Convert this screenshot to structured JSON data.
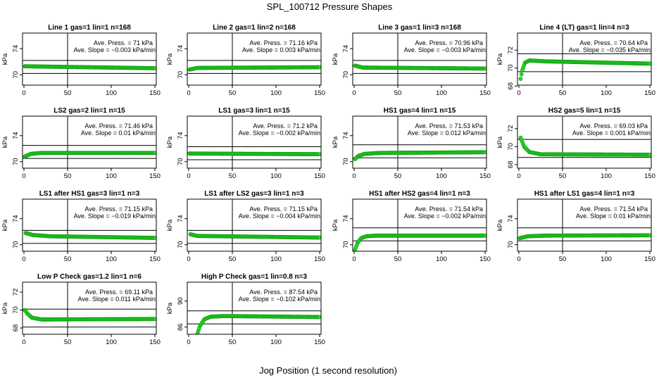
{
  "figure": {
    "title": "SPL_100712  Pressure Shapes",
    "xlabel": "Jog Position (1 second resolution)"
  },
  "colors": {
    "points_fill": "#22dd22",
    "points_edge": "#119911",
    "axes": "#000000"
  },
  "chart_data": [
    {
      "type": "scatter",
      "title": "Line 1 gas=1 lin=1 n=168",
      "ylabel": "kPa",
      "xlim": [
        0,
        150
      ],
      "ylim": [
        68.4,
        76.4
      ],
      "xticks": [
        0,
        50,
        100,
        150
      ],
      "yticks": [
        70,
        74
      ],
      "hline": [
        70.2,
        72.2
      ],
      "vline": 50,
      "ave_press": "Ave. Press. =  71  kPa",
      "ave_slope": "Ave. Slope = −0.003  kPa/min",
      "series": [
        {
          "x": [
            1,
            150
          ],
          "y": [
            71.3,
            71.0
          ]
        }
      ]
    },
    {
      "type": "scatter",
      "title": "Line 2 gas=1 lin=2 n=168",
      "ylabel": "kPa",
      "xlim": [
        0,
        150
      ],
      "ylim": [
        68.4,
        76.4
      ],
      "xticks": [
        0,
        50,
        100,
        150
      ],
      "yticks": [
        70,
        74
      ],
      "hline": [
        70.2,
        72.2
      ],
      "vline": 50,
      "ave_press": "Ave. Press. =  71.16  kPa",
      "ave_slope": "Ave. Slope =  0.003  kPa/min",
      "series": [
        {
          "x": [
            1,
            10,
            150
          ],
          "y": [
            70.8,
            71.05,
            71.15
          ]
        }
      ]
    },
    {
      "type": "scatter",
      "title": "Line 3 gas=1 lin=3 n=168",
      "ylabel": "kPa",
      "xlim": [
        0,
        150
      ],
      "ylim": [
        68.4,
        76.4
      ],
      "xticks": [
        0,
        50,
        100,
        150
      ],
      "yticks": [
        70,
        74
      ],
      "hline": [
        70.2,
        72.2
      ],
      "vline": 50,
      "ave_press": "Ave. Press. =  70.96  kPa",
      "ave_slope": "Ave. Slope = −0.003  kPa/min",
      "series": [
        {
          "x": [
            1,
            10,
            150
          ],
          "y": [
            71.4,
            71.1,
            70.95
          ]
        }
      ]
    },
    {
      "type": "scatter",
      "title": "Line 4 (LT) gas=1 lin=4 n=3",
      "ylabel": "kPa",
      "xlim": [
        0,
        150
      ],
      "ylim": [
        68.1,
        73.9
      ],
      "xticks": [
        0,
        50,
        100,
        150
      ],
      "yticks": [
        68,
        70,
        72
      ],
      "hline": [
        69.6,
        71.6
      ],
      "vline": 50,
      "ave_press": "Ave. Press. =  70.64  kPa",
      "ave_slope": "Ave. Slope = −0.035  kPa/min",
      "series": [
        {
          "x": [
            2,
            4,
            7,
            12,
            30,
            150
          ],
          "y": [
            68.8,
            69.8,
            70.6,
            70.85,
            70.75,
            70.5
          ]
        }
      ]
    },
    {
      "type": "scatter",
      "title": "LS2 gas=2 lin=1 n=15",
      "ylabel": "kPa",
      "xlim": [
        0,
        150
      ],
      "ylim": [
        69.0,
        77.0
      ],
      "xticks": [
        0,
        50,
        100,
        150
      ],
      "yticks": [
        70,
        74
      ],
      "hline": [
        70.5,
        72.5
      ],
      "vline": 50,
      "ave_press": "Ave. Press. =  71.46  kPa",
      "ave_slope": "Ave. Slope =  0.01  kPa/min",
      "series": [
        {
          "x": [
            1,
            8,
            20,
            150
          ],
          "y": [
            70.8,
            71.2,
            71.35,
            71.35
          ]
        }
      ]
    },
    {
      "type": "scatter",
      "title": "LS1 gas=3 lin=1 n=15",
      "ylabel": "kPa",
      "xlim": [
        0,
        150
      ],
      "ylim": [
        69.0,
        77.0
      ],
      "xticks": [
        0,
        50,
        100,
        150
      ],
      "yticks": [
        70,
        74
      ],
      "hline": [
        70.3,
        72.3
      ],
      "vline": 50,
      "ave_press": "Ave. Press. =  71.2  kPa",
      "ave_slope": "Ave. Slope = −0.002  kPa/min",
      "series": [
        {
          "x": [
            1,
            150
          ],
          "y": [
            71.25,
            71.15
          ]
        }
      ]
    },
    {
      "type": "scatter",
      "title": "HS1 gas=4 lin=1 n=15",
      "ylabel": "kPa",
      "xlim": [
        0,
        150
      ],
      "ylim": [
        69.0,
        77.0
      ],
      "xticks": [
        0,
        50,
        100,
        150
      ],
      "yticks": [
        70,
        74
      ],
      "hline": [
        70.6,
        72.6
      ],
      "vline": 50,
      "ave_press": "Ave. Press. =  71.53  kPa",
      "ave_slope": "Ave. Slope =  0.012  kPa/min",
      "series": [
        {
          "x": [
            1,
            5,
            12,
            30,
            150
          ],
          "y": [
            70.4,
            70.9,
            71.2,
            71.35,
            71.45
          ]
        }
      ]
    },
    {
      "type": "scatter",
      "title": "HS2 gas=5 lin=1 n=15",
      "ylabel": "kPa",
      "xlim": [
        0,
        150
      ],
      "ylim": [
        67.6,
        73.4
      ],
      "xticks": [
        0,
        50,
        100,
        150
      ],
      "yticks": [
        68,
        70,
        72
      ],
      "hline": [
        68.8,
        70.8
      ],
      "vline": 50,
      "ave_press": "Ave. Press. =  69.03  kPa",
      "ave_slope": "Ave. Slope =  0.001  kPa/min",
      "series": [
        {
          "x": [
            2,
            6,
            12,
            25,
            150
          ],
          "y": [
            71.0,
            70.0,
            69.4,
            69.15,
            69.1
          ]
        }
      ]
    },
    {
      "type": "scatter",
      "title": "LS1 after HS1 gas=3 lin=1 n=3",
      "ylabel": "kPa",
      "xlim": [
        0,
        150
      ],
      "ylim": [
        69.0,
        77.0
      ],
      "xticks": [
        0,
        50,
        100,
        150
      ],
      "yticks": [
        70,
        74
      ],
      "hline": [
        70.2,
        72.2
      ],
      "vline": 50,
      "ave_press": "Ave. Press. =  71.15  kPa",
      "ave_slope": "Ave. Slope = −0.019  kPa/min",
      "series": [
        {
          "x": [
            2,
            10,
            30,
            150
          ],
          "y": [
            71.8,
            71.5,
            71.3,
            71.05
          ]
        }
      ]
    },
    {
      "type": "scatter",
      "title": "LS1 after LS2 gas=3 lin=1 n=3",
      "ylabel": "kPa",
      "xlim": [
        0,
        150
      ],
      "ylim": [
        69.0,
        77.0
      ],
      "xticks": [
        0,
        50,
        100,
        150
      ],
      "yticks": [
        70,
        74
      ],
      "hline": [
        70.2,
        72.2
      ],
      "vline": 50,
      "ave_press": "Ave. Press. =  71.15  kPa",
      "ave_slope": "Ave. Slope = −0.004  kPa/min",
      "series": [
        {
          "x": [
            2,
            10,
            150
          ],
          "y": [
            71.6,
            71.35,
            71.1
          ]
        }
      ]
    },
    {
      "type": "scatter",
      "title": "HS1 after HS2 gas=4 lin=1 n=3",
      "ylabel": "kPa",
      "xlim": [
        0,
        150
      ],
      "ylim": [
        69.0,
        77.0
      ],
      "xticks": [
        0,
        50,
        100,
        150
      ],
      "yticks": [
        70,
        74
      ],
      "hline": [
        70.6,
        72.6
      ],
      "vline": 50,
      "ave_press": "Ave. Press. =  71.54  kPa",
      "ave_slope": "Ave. Slope = −0.002  kPa/min",
      "series": [
        {
          "x": [
            1,
            4,
            8,
            14,
            25,
            150
          ],
          "y": [
            69.2,
            70.3,
            71.0,
            71.3,
            71.4,
            71.4
          ]
        }
      ]
    },
    {
      "type": "scatter",
      "title": "HS1 after LS1 gas=4 lin=1 n=3",
      "ylabel": "kPa",
      "xlim": [
        0,
        150
      ],
      "ylim": [
        69.0,
        77.0
      ],
      "xticks": [
        0,
        50,
        100,
        150
      ],
      "yticks": [
        70,
        74
      ],
      "hline": [
        70.6,
        72.6
      ],
      "vline": 50,
      "ave_press": "Ave. Press. =  71.54  kPa",
      "ave_slope": "Ave. Slope =  0.01  kPa/min",
      "series": [
        {
          "x": [
            1,
            10,
            30,
            150
          ],
          "y": [
            71.0,
            71.3,
            71.4,
            71.45
          ]
        }
      ]
    },
    {
      "type": "scatter",
      "title": "Low P Check gas=1.2 lin=1 n=6",
      "ylabel": "kPa",
      "xlim": [
        0,
        150
      ],
      "ylim": [
        67.3,
        73.1
      ],
      "xticks": [
        0,
        50,
        100,
        150
      ],
      "yticks": [
        68,
        70,
        72
      ],
      "hline": [
        68.1,
        70.1
      ],
      "vline": 50,
      "ave_press": "Ave. Press. =  69.11  kPa",
      "ave_slope": "Ave. Slope =  0.011  kPa/min",
      "series": [
        {
          "x": [
            1,
            4,
            9,
            20,
            150
          ],
          "y": [
            70.0,
            69.6,
            69.15,
            68.95,
            69.0
          ]
        }
      ]
    },
    {
      "type": "scatter",
      "title": "High P Check gas=1 lin=0.8 n=3",
      "ylabel": "kPa",
      "xlim": [
        0,
        150
      ],
      "ylim": [
        84.9,
        92.9
      ],
      "xticks": [
        0,
        50,
        100,
        150
      ],
      "yticks": [
        86,
        90
      ],
      "hline": [
        86.5,
        88.5
      ],
      "vline": 50,
      "ave_press": "Ave. Press. =  87.54  kPa",
      "ave_slope": "Ave. Slope = −0.102  kPa/min",
      "series": [
        {
          "x": [
            10,
            13,
            18,
            25,
            40,
            150
          ],
          "y": [
            85.0,
            86.2,
            87.2,
            87.6,
            87.7,
            87.55
          ]
        }
      ]
    }
  ]
}
